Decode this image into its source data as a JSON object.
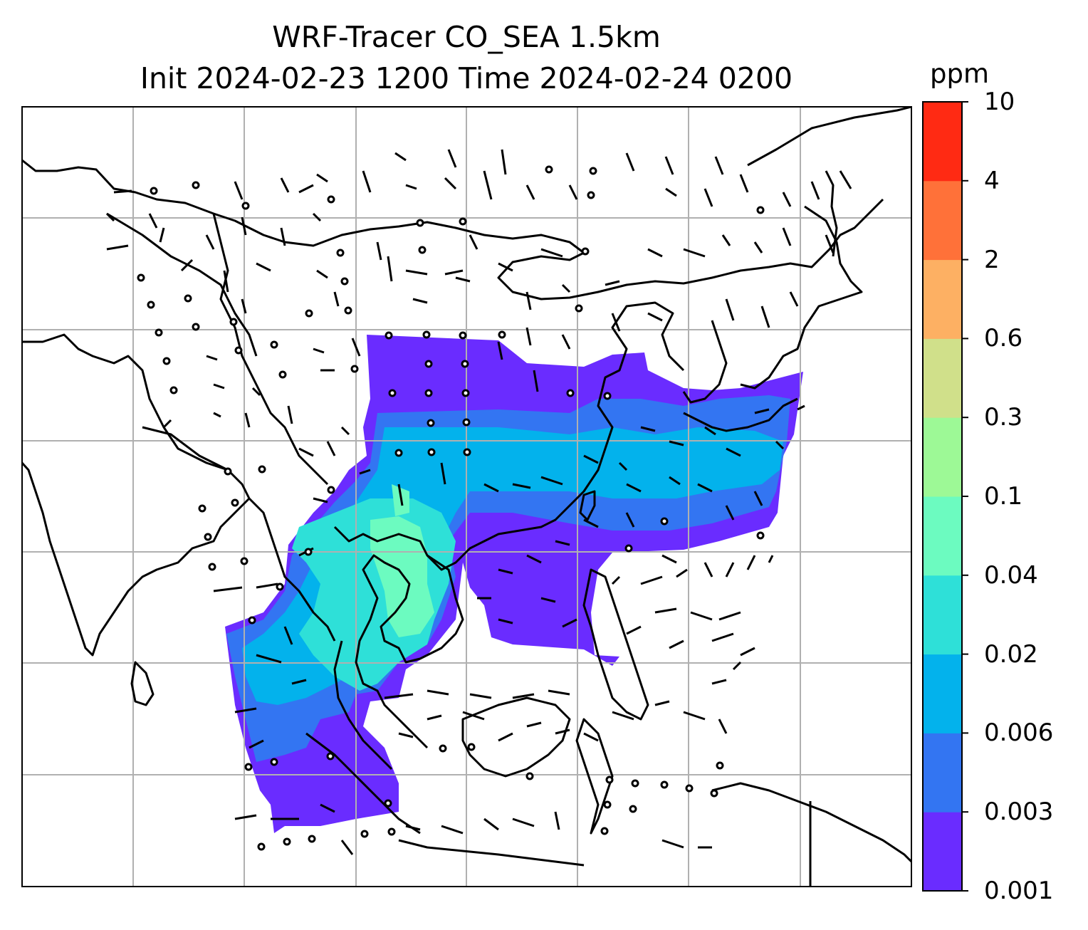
{
  "title": {
    "line1": "WRF-Tracer CO_SEA 1.5km",
    "line2": "Init 2024-02-23 1200 Time 2024-02-24 0200"
  },
  "colorbar": {
    "unit": "ppm",
    "levels": [
      "0.001",
      "0.003",
      "0.006",
      "0.02",
      "0.04",
      "0.1",
      "0.3",
      "0.6",
      "2",
      "4",
      "10"
    ],
    "colors": [
      "#6a2cff",
      "#3375f2",
      "#03b2ec",
      "#2ee0d8",
      "#6cfbc0",
      "#9df996",
      "#d0e08a",
      "#fdb063",
      "#ff7139",
      "#ff2a13"
    ]
  },
  "map": {
    "gridlines": true,
    "gridline_color": "#b0b0b0",
    "coastline_color": "#000000",
    "wind_barbs_shown": true,
    "calm_circles_shown": true
  }
}
